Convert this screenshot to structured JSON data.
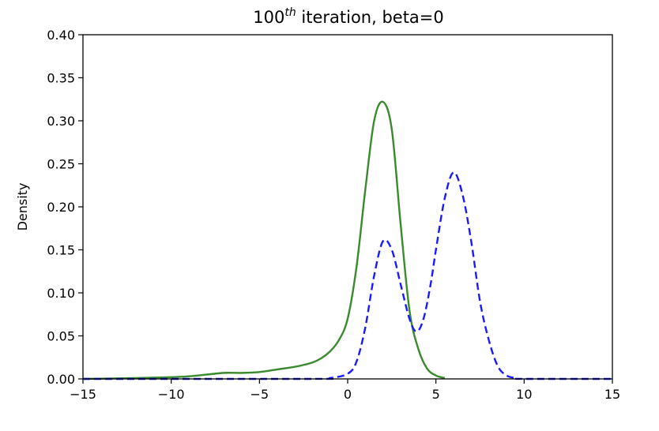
{
  "chart_data": {
    "type": "line",
    "title": {
      "prefix": "100",
      "superscript": "th",
      "suffix": " iteration, beta=0"
    },
    "xlabel": "",
    "ylabel": "Density",
    "xlim": [
      -15,
      15
    ],
    "ylim": [
      0,
      0.4
    ],
    "xticks": [
      -15,
      -10,
      -5,
      0,
      5,
      10,
      15
    ],
    "xtick_labels": [
      "−15",
      "−10",
      "−5",
      "0",
      "5",
      "10",
      "15"
    ],
    "yticks": [
      0,
      0.05,
      0.1,
      0.15,
      0.2,
      0.25,
      0.3,
      0.35,
      0.4
    ],
    "ytick_labels": [
      "0.00",
      "0.05",
      "0.10",
      "0.15",
      "0.20",
      "0.25",
      "0.30",
      "0.35",
      "0.40"
    ],
    "grid": false,
    "series": [
      {
        "color": "#3a8a2e",
        "style": "solid",
        "x": [
          -15,
          -12,
          -10,
          -9,
          -8,
          -7,
          -6,
          -5,
          -4,
          -3,
          -2,
          -1.5,
          -1,
          -0.5,
          0,
          0.5,
          1,
          1.5,
          2,
          2.5,
          3,
          3.5,
          4,
          4.5,
          5,
          5.5
        ],
        "y": [
          0,
          0.001,
          0.002,
          0.003,
          0.005,
          0.007,
          0.007,
          0.008,
          0.011,
          0.014,
          0.019,
          0.024,
          0.032,
          0.045,
          0.07,
          0.13,
          0.22,
          0.3,
          0.322,
          0.29,
          0.18,
          0.08,
          0.035,
          0.012,
          0.004,
          0.001
        ]
      },
      {
        "color": "#1a1aff",
        "style": "dashed",
        "x": [
          -15,
          -2,
          -1,
          0,
          0.5,
          1,
          1.5,
          2,
          2.5,
          3,
          3.5,
          3.9,
          4.3,
          4.7,
          5,
          5.5,
          6,
          6.5,
          7,
          7.5,
          8,
          8.5,
          9,
          9.5,
          10,
          15
        ],
        "y": [
          0,
          0,
          0.001,
          0.006,
          0.02,
          0.06,
          0.12,
          0.16,
          0.15,
          0.11,
          0.07,
          0.055,
          0.07,
          0.11,
          0.15,
          0.21,
          0.24,
          0.215,
          0.16,
          0.09,
          0.045,
          0.015,
          0.004,
          0.001,
          0,
          0
        ]
      }
    ]
  }
}
